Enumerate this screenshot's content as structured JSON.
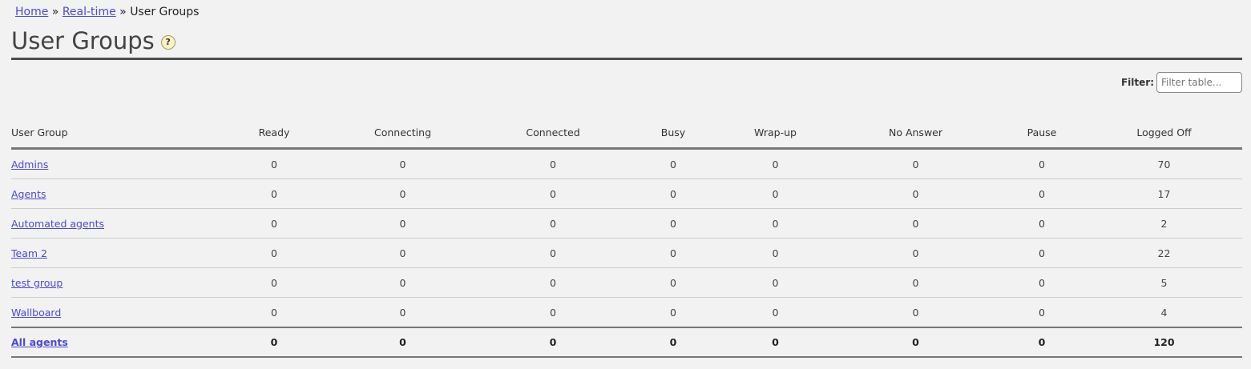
{
  "breadcrumb": {
    "items": [
      "Home",
      "Real-time"
    ],
    "current": "User Groups",
    "separator": "»"
  },
  "page": {
    "title": "User Groups",
    "help_icon": "?"
  },
  "filter": {
    "label": "Filter:",
    "placeholder": "Filter table..."
  },
  "table": {
    "columns": [
      "User Group",
      "Ready",
      "Connecting",
      "Connected",
      "Busy",
      "Wrap-up",
      "No Answer",
      "Pause",
      "Logged Off"
    ],
    "rows": [
      [
        "Admins",
        "0",
        "0",
        "0",
        "0",
        "0",
        "0",
        "0",
        "70"
      ],
      [
        "Agents",
        "0",
        "0",
        "0",
        "0",
        "0",
        "0",
        "0",
        "17"
      ],
      [
        "Automated agents",
        "0",
        "0",
        "0",
        "0",
        "0",
        "0",
        "0",
        "2"
      ],
      [
        "Team 2",
        "0",
        "0",
        "0",
        "0",
        "0",
        "0",
        "0",
        "22"
      ],
      [
        "test group",
        "0",
        "0",
        "0",
        "0",
        "0",
        "0",
        "0",
        "5"
      ],
      [
        "Wallboard",
        "0",
        "0",
        "0",
        "0",
        "0",
        "0",
        "0",
        "4"
      ]
    ],
    "total": [
      "All agents",
      "0",
      "0",
      "0",
      "0",
      "0",
      "0",
      "0",
      "120"
    ]
  }
}
